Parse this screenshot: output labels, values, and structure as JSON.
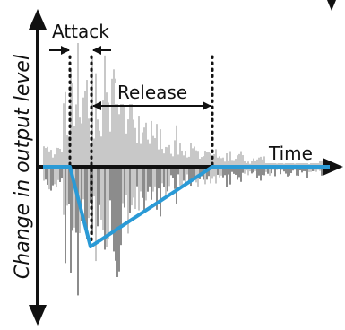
{
  "diagram": {
    "labels": {
      "attack": "Attack",
      "release": "Release",
      "time": "Time",
      "y_axis": "Change in output level"
    },
    "colors": {
      "background": "#ffffff",
      "axis": "#111111",
      "waveform_light": "#c8c8c8",
      "waveform_dark": "#8c8c8c",
      "envelope": "#2a9ad6",
      "markers": "#111111"
    },
    "icons": [
      "arrow-up",
      "arrow-down",
      "arrow-right",
      "double-arrow"
    ]
  }
}
